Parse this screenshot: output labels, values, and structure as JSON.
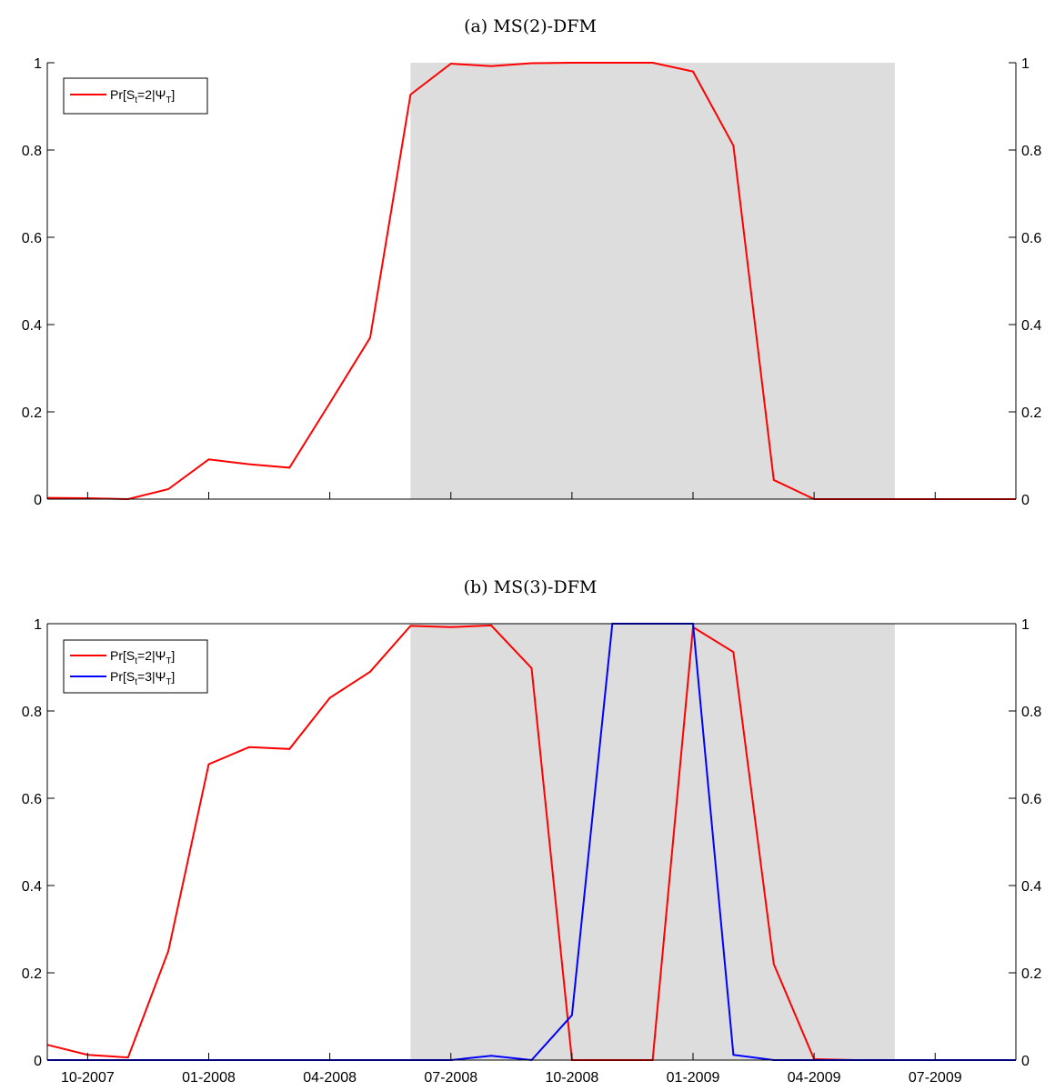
{
  "chart_data": [
    {
      "type": "line",
      "title": "(a) MS(2)-DFM",
      "x_tick_labels": [],
      "y_ticks": [
        "0",
        "0.2",
        "0.4",
        "0.6",
        "0.8",
        "1"
      ],
      "ylim": [
        0,
        1
      ],
      "xlim": [
        "09-2007",
        "09-2009"
      ],
      "shaded_region": [
        "06-2008",
        "06-2009"
      ],
      "grid": false,
      "legend_position": "top-left",
      "x": [
        "09-2007",
        "10-2007",
        "11-2007",
        "12-2007",
        "01-2008",
        "02-2008",
        "03-2008",
        "04-2008",
        "05-2008",
        "06-2008",
        "07-2008",
        "08-2008",
        "09-2008",
        "10-2008",
        "11-2008",
        "12-2008",
        "01-2009",
        "02-2009",
        "03-2009",
        "04-2009",
        "05-2009",
        "06-2009",
        "07-2009",
        "08-2009",
        "09-2009"
      ],
      "series": [
        {
          "name": "Pr[St=2|ΨT]",
          "legend": {
            "a": "Pr[S",
            "b": "t",
            "c": "=2|Ψ",
            "d": "T",
            "e": "]"
          },
          "color": "#ff0000",
          "values": [
            0.003,
            0.002,
            0.0,
            0.023,
            0.091,
            0.08,
            0.072,
            0.22,
            0.37,
            0.927,
            0.998,
            0.992,
            0.999,
            1.0,
            1.0,
            1.0,
            0.98,
            0.81,
            0.044,
            0.0,
            0.0,
            0.0,
            0.0,
            0.0,
            0.0
          ]
        }
      ]
    },
    {
      "type": "line",
      "title": "(b) MS(3)-DFM",
      "x_tick_labels": [
        "10-2007",
        "01-2008",
        "04-2008",
        "07-2008",
        "10-2008",
        "01-2009",
        "04-2009",
        "07-2009"
      ],
      "y_ticks": [
        "0",
        "0.2",
        "0.4",
        "0.6",
        "0.8",
        "1"
      ],
      "ylim": [
        0,
        1
      ],
      "xlim": [
        "09-2007",
        "09-2009"
      ],
      "shaded_region": [
        "06-2008",
        "06-2009"
      ],
      "grid": false,
      "legend_position": "top-left",
      "x": [
        "09-2007",
        "10-2007",
        "11-2007",
        "12-2007",
        "01-2008",
        "02-2008",
        "03-2008",
        "04-2008",
        "05-2008",
        "06-2008",
        "07-2008",
        "08-2008",
        "09-2008",
        "10-2008",
        "11-2008",
        "12-2008",
        "01-2009",
        "02-2009",
        "03-2009",
        "04-2009",
        "05-2009",
        "06-2009",
        "07-2009",
        "08-2009",
        "09-2009"
      ],
      "series": [
        {
          "name": "Pr[St=2|ΨT]",
          "legend": {
            "a": "Pr[S",
            "b": "t",
            "c": "=2|Ψ",
            "d": "T",
            "e": "]"
          },
          "color": "#ff0000",
          "values": [
            0.035,
            0.012,
            0.006,
            0.25,
            0.678,
            0.717,
            0.713,
            0.83,
            0.89,
            0.995,
            0.992,
            0.996,
            0.898,
            0.0,
            0.0,
            0.0,
            0.992,
            0.935,
            0.22,
            0.002,
            0.0,
            0.0,
            0.0,
            0.0,
            0.0
          ]
        },
        {
          "name": "Pr[St=3|ΨT]",
          "legend": {
            "a": "Pr[S",
            "b": "t",
            "c": "=3|Ψ",
            "d": "T",
            "e": "]"
          },
          "color": "#0000ff",
          "values": [
            0.0,
            0.0,
            0.0,
            0.0,
            0.0,
            0.0,
            0.0,
            0.0,
            0.0,
            0.0,
            0.0,
            0.01,
            0.0,
            0.103,
            1.0,
            1.0,
            1.0,
            0.012,
            0.0,
            0.0,
            0.0,
            0.0,
            0.0,
            0.0,
            0.0
          ]
        }
      ]
    }
  ],
  "colors": {
    "shade": "#dddddd",
    "axis": "#000000"
  }
}
